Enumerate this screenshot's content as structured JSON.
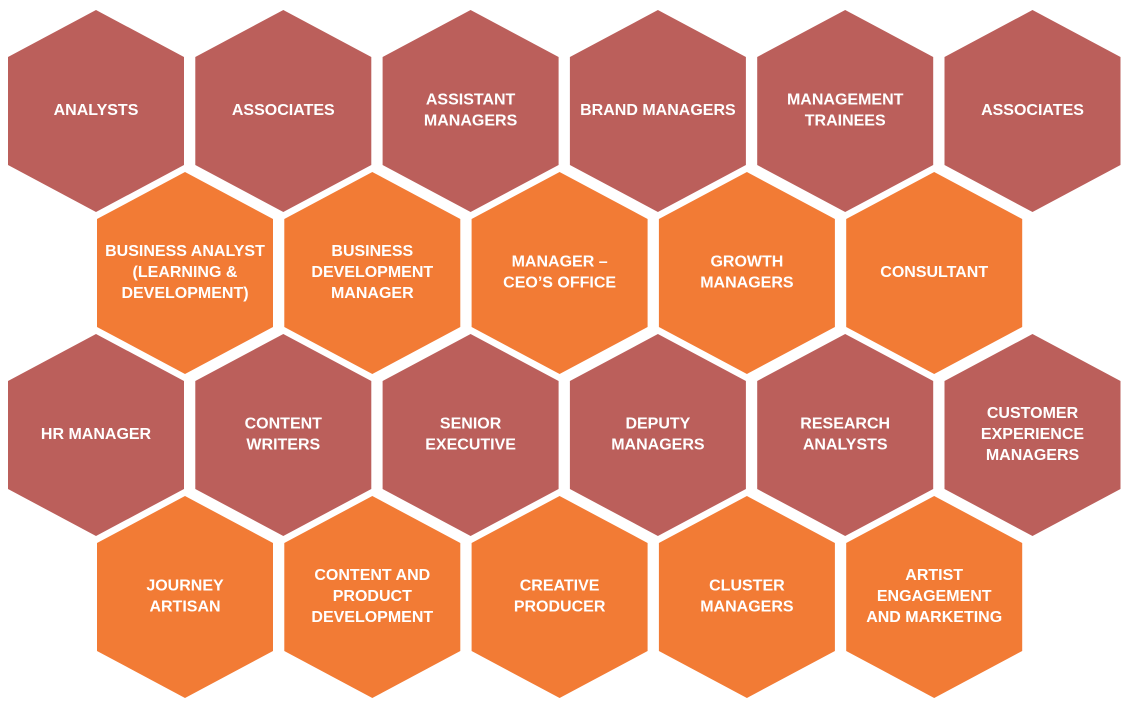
{
  "rows": [
    {
      "items": [
        {
          "lines": [
            "ANALYSTS"
          ]
        },
        {
          "lines": [
            "ASSOCIATES"
          ]
        },
        {
          "lines": [
            "ASSISTANT",
            "MANAGERS"
          ]
        },
        {
          "lines": [
            "BRAND MANAGERS"
          ]
        },
        {
          "lines": [
            "MANAGEMENT",
            "TRAINEES"
          ]
        },
        {
          "lines": [
            "ASSOCIATES"
          ]
        }
      ]
    },
    {
      "items": [
        {
          "lines": [
            "BUSINESS ANALYST",
            "(LEARNING &",
            "DEVELOPMENT)"
          ]
        },
        {
          "lines": [
            "BUSINESS",
            "DEVELOPMENT",
            "MANAGER"
          ]
        },
        {
          "lines": [
            "MANAGER –",
            "CEO’S OFFICE"
          ]
        },
        {
          "lines": [
            "GROWTH",
            "MANAGERS"
          ]
        },
        {
          "lines": [
            "CONSULTANT"
          ]
        }
      ]
    },
    {
      "items": [
        {
          "lines": [
            "HR MANAGER"
          ]
        },
        {
          "lines": [
            "CONTENT",
            "WRITERS"
          ]
        },
        {
          "lines": [
            "SENIOR",
            "EXECUTIVE"
          ]
        },
        {
          "lines": [
            "DEPUTY",
            "MANAGERS"
          ]
        },
        {
          "lines": [
            "RESEARCH",
            "ANALYSTS"
          ]
        },
        {
          "lines": [
            "CUSTOMER",
            "EXPERIENCE",
            "MANAGERS"
          ]
        }
      ]
    },
    {
      "items": [
        {
          "lines": [
            "JOURNEY",
            "ARTISAN"
          ]
        },
        {
          "lines": [
            "CONTENT AND",
            "PRODUCT",
            "DEVELOPMENT"
          ]
        },
        {
          "lines": [
            "CREATIVE",
            "PRODUCER"
          ]
        },
        {
          "lines": [
            "CLUSTER",
            "MANAGERS"
          ]
        },
        {
          "lines": [
            "ARTIST",
            "ENGAGEMENT",
            "AND MARKETING"
          ]
        }
      ]
    }
  ]
}
